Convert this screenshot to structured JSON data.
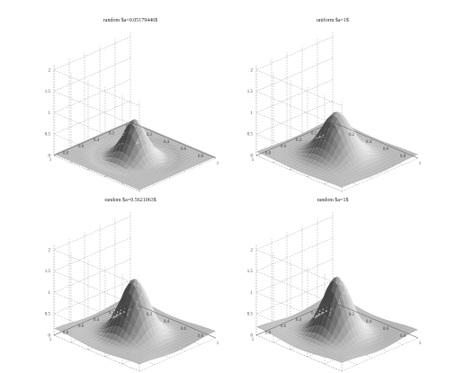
{
  "chart_data": [
    {
      "type": "surface",
      "title": "random $a=0.05179446$",
      "zticks": [
        "0",
        "0.5",
        "1",
        "1.5",
        "2"
      ],
      "xticks": [
        "0",
        "0.2",
        "0.4",
        "0.6",
        "0.8",
        "1"
      ],
      "yticks": [
        "0",
        "0.2",
        "0.4",
        "0.6",
        "0.8",
        "1"
      ],
      "zlim": [
        0,
        2.1
      ],
      "peak_height": 0.85,
      "peak_width": 0.1,
      "ring": true,
      "corner_lift": 0.0
    },
    {
      "type": "surface",
      "title": "uniform $a=1$",
      "zticks": [
        "0",
        "0.5",
        "1",
        "1.5",
        "2"
      ],
      "xticks": [
        "0",
        "0.2",
        "0.4",
        "0.6",
        "0.8",
        "1"
      ],
      "yticks": [
        "0",
        "0.2",
        "0.4",
        "0.6",
        "0.8",
        "1"
      ],
      "zlim": [
        0,
        2.1
      ],
      "peak_height": 1.05,
      "peak_width": 0.14,
      "ring": false,
      "corner_lift": 0.25
    },
    {
      "type": "surface",
      "title": "random $a=0.5621063$",
      "zticks": [
        "0",
        "0.5",
        "1",
        "1.5",
        "2"
      ],
      "xticks": [
        "0",
        "0.2",
        "0.4",
        "0.6",
        "0.8",
        "1"
      ],
      "yticks": [
        "0",
        "0.2",
        "0.4",
        "0.6",
        "0.8",
        "1"
      ],
      "zlim": [
        0,
        2.1
      ],
      "peak_height": 1.35,
      "peak_width": 0.13,
      "ring": false,
      "corner_lift": 0.45
    },
    {
      "type": "surface",
      "title": "random $a=1$",
      "zticks": [
        "0",
        "0.5",
        "1",
        "1.5",
        "2"
      ],
      "xticks": [
        "0",
        "0.2",
        "0.4",
        "0.6",
        "0.8",
        "1"
      ],
      "yticks": [
        "0",
        "0.2",
        "0.4",
        "0.6",
        "0.8",
        "1"
      ],
      "zlim": [
        0,
        2.1
      ],
      "peak_height": 1.4,
      "peak_width": 0.13,
      "ring": false,
      "corner_lift": 0.55
    }
  ]
}
